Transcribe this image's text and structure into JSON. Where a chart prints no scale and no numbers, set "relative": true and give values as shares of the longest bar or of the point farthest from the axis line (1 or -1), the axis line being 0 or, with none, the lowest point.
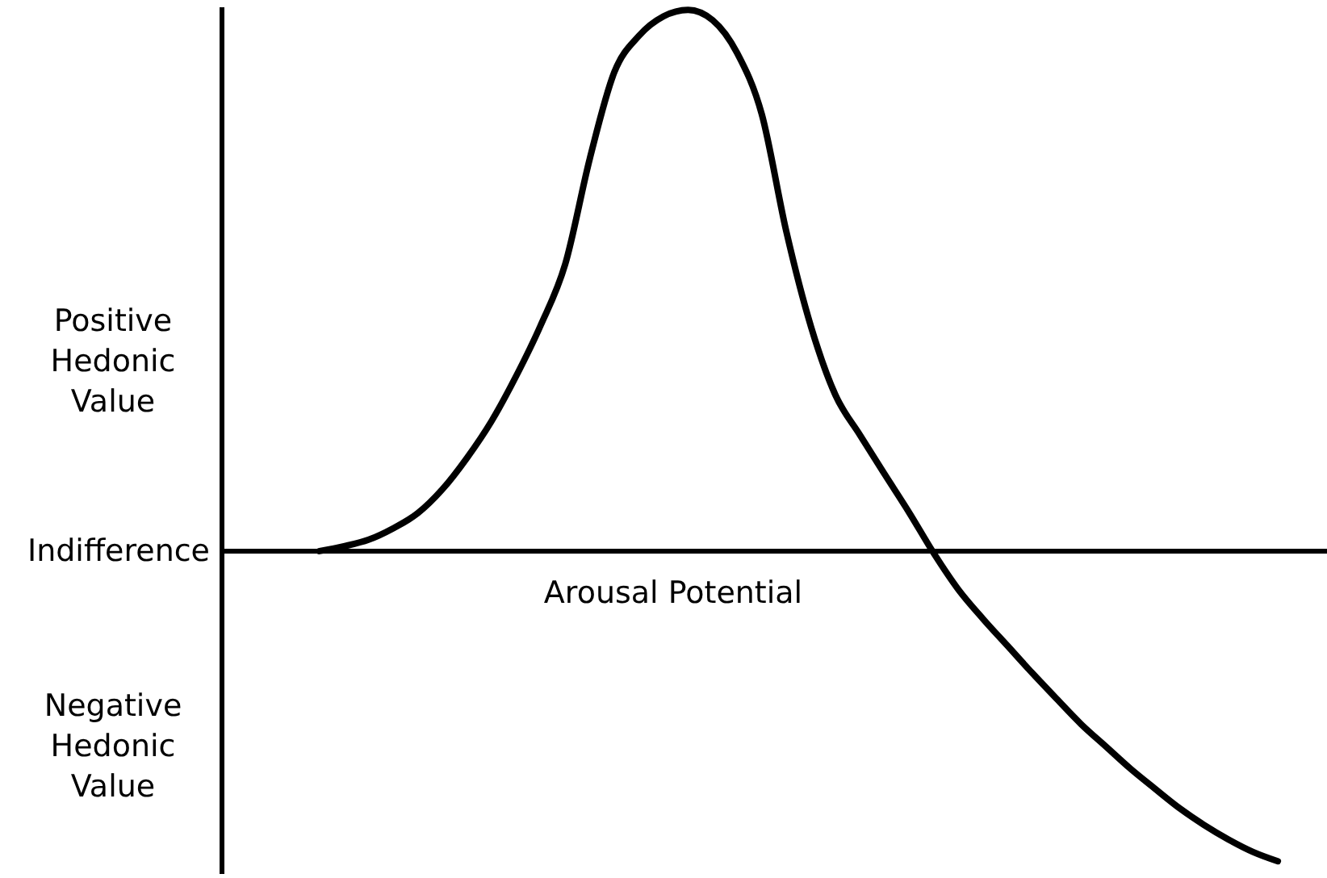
{
  "chart_data": {
    "type": "line",
    "relative": true,
    "xlabel": "Arousal Potential",
    "annotations": [
      "Positive Hedonic Value",
      "Negative Hedonic Value"
    ],
    "ref_lines": [
      {
        "axis": "y",
        "value": 0,
        "label": "Indifference",
        "color": "#000000"
      }
    ],
    "categories": [
      null,
      null,
      null,
      null,
      null,
      null,
      null,
      null,
      null,
      null,
      null,
      null,
      null,
      null,
      null,
      null,
      null,
      null,
      null,
      null,
      null,
      null,
      null,
      null,
      null,
      null,
      null,
      null,
      null,
      null,
      null,
      null,
      null,
      null,
      null,
      null,
      null,
      null,
      null,
      null,
      null,
      null,
      null,
      null,
      null,
      null
    ],
    "series": [
      {
        "color": "#000000",
        "values": [
          null,
          null,
          null,
          null,
          0.0,
          0.009,
          0.021,
          0.042,
          0.07,
          0.114,
          0.172,
          0.24,
          0.323,
          0.417,
          0.53,
          0.725,
          0.885,
          0.952,
          0.988,
          1.0,
          0.981,
          0.92,
          0.807,
          0.59,
          0.415,
          0.288,
          0.214,
          0.142,
          0.071,
          -0.004,
          -0.071,
          -0.125,
          -0.175,
          -0.225,
          -0.273,
          -0.32,
          -0.361,
          -0.402,
          -0.439,
          -0.475,
          -0.506,
          -0.533,
          -0.556,
          -0.573,
          null,
          null
        ]
      }
    ]
  }
}
